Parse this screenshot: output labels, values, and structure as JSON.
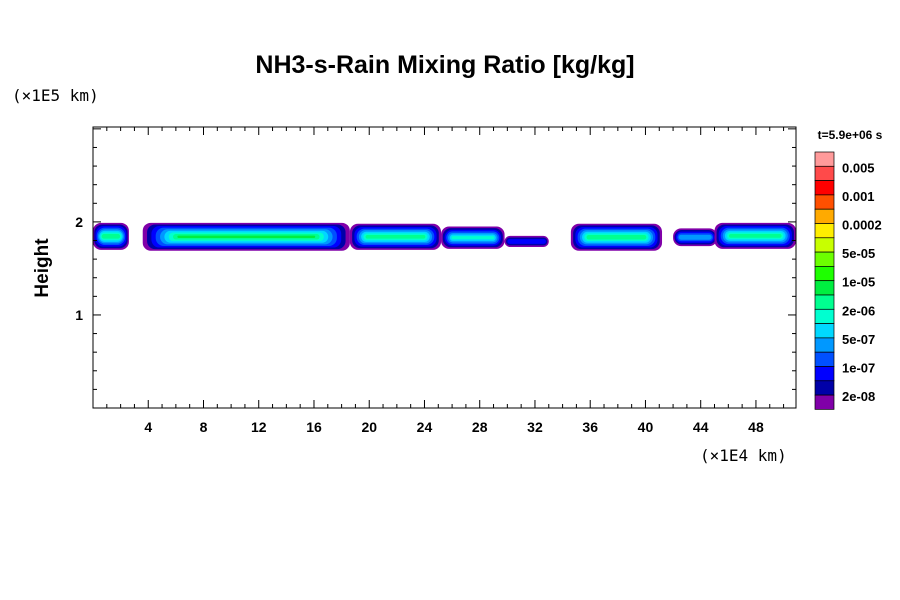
{
  "chart_data": {
    "type": "heatmap",
    "title": "NH3-s-Rain Mixing Ratio [kg/kg]",
    "xlabel": "",
    "ylabel": "Height",
    "x_unit": "(×1E4 km)",
    "y_unit": "(×1E5 km)",
    "time_label": "t=5.9e+06 s",
    "xlim": [
      0,
      50.9
    ],
    "ylim": [
      0,
      3.02
    ],
    "xticks": [
      4,
      8,
      12,
      16,
      20,
      24,
      28,
      32,
      36,
      40,
      44,
      48
    ],
    "yticks": [
      1,
      2
    ],
    "colorbar": {
      "colors": [
        "#ff9a9a",
        "#ff4a4a",
        "#ff0000",
        "#ff5000",
        "#ffaa00",
        "#ffee00",
        "#c8ff00",
        "#6cff00",
        "#1eff00",
        "#00ee40",
        "#00ff90",
        "#00ffd0",
        "#00d8ff",
        "#0098ff",
        "#0050ff",
        "#0000ff",
        "#0000a8",
        "#8000a8"
      ],
      "labels": [
        "0.005",
        "0.001",
        "0.0002",
        "5e-05",
        "1e-05",
        "2e-06",
        "5e-07",
        "1e-07",
        "2e-08"
      ]
    },
    "regions": [
      {
        "x": [
          0,
          2.6
        ],
        "y": [
          1.7,
          1.99
        ],
        "peak_level": 9
      },
      {
        "x": [
          3.6,
          18.6
        ],
        "y": [
          1.69,
          1.99
        ],
        "peak_level": 6
      },
      {
        "x": [
          18.6,
          25.2
        ],
        "y": [
          1.7,
          1.98
        ],
        "peak_level": 8
      },
      {
        "x": [
          25.2,
          29.8
        ],
        "y": [
          1.71,
          1.95
        ],
        "peak_level": 8
      },
      {
        "x": [
          29.8,
          33.0
        ],
        "y": [
          1.73,
          1.85
        ],
        "peak_level": 12
      },
      {
        "x": [
          34.6,
          41.2
        ],
        "y": [
          1.69,
          1.98
        ],
        "peak_level": 8
      },
      {
        "x": [
          42.0,
          45.2
        ],
        "y": [
          1.74,
          1.93
        ],
        "peak_level": 10
      },
      {
        "x": [
          45.0,
          50.9
        ],
        "y": [
          1.71,
          1.99
        ],
        "peak_level": 9
      }
    ]
  }
}
